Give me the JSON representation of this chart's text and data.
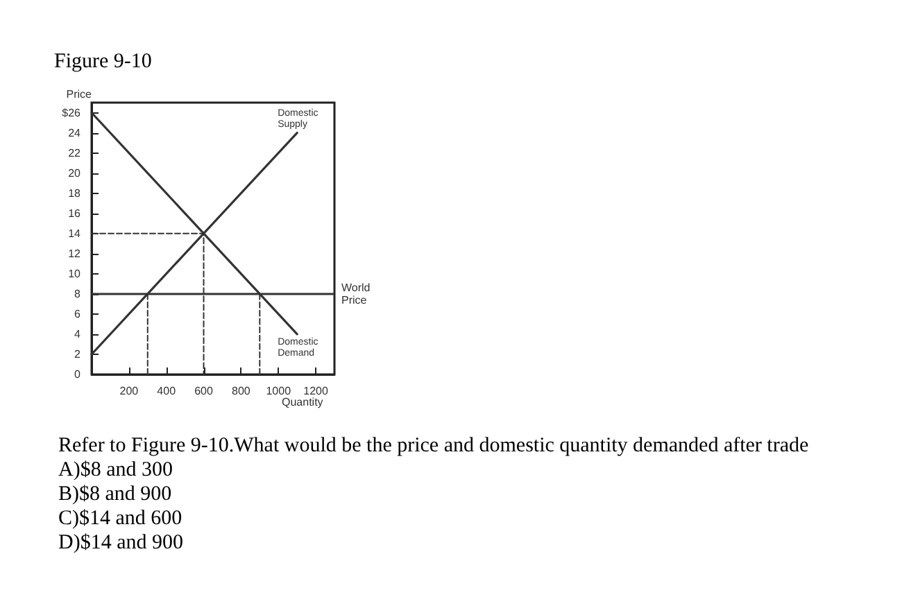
{
  "chart_data": {
    "type": "line",
    "title": "Figure 9-10",
    "xlabel": "Quantity",
    "ylabel": "Price",
    "xlim": [
      0,
      1300
    ],
    "xticks": [
      200,
      400,
      600,
      800,
      1000,
      1200
    ],
    "ylim": [
      0,
      27
    ],
    "yticks": [
      0,
      2,
      4,
      6,
      8,
      10,
      12,
      14,
      16,
      18,
      20,
      22,
      24,
      {
        "value": 26,
        "label": "$26"
      }
    ],
    "grid": false,
    "legend": false,
    "marker": "none",
    "series": [
      {
        "name": "Domestic Supply",
        "color": "#333333",
        "x": [
          0,
          1100
        ],
        "values": [
          2,
          24
        ]
      },
      {
        "name": "Domestic Demand",
        "color": "#333333",
        "x": [
          0,
          1100
        ],
        "values": [
          26,
          4
        ]
      },
      {
        "color": "#333333",
        "line_style": "dashed",
        "x": [
          0,
          600,
          600
        ],
        "values": [
          14,
          14,
          0
        ]
      },
      {
        "color": "#333333",
        "line_style": "dashed",
        "x": [
          300,
          300
        ],
        "values": [
          8,
          0
        ]
      },
      {
        "color": "#333333",
        "line_style": "dashed",
        "x": [
          900,
          900
        ],
        "values": [
          8,
          0
        ]
      }
    ],
    "ref_lines": [
      {
        "axis": "y",
        "value": 8,
        "label": "World Price",
        "color": "#333333"
      }
    ],
    "annotations": [
      "Refer to Figure 9-10.What would be the price and domestic quantity demanded after trade",
      "A)$8 and 300",
      "B)$8 and 900",
      "C)$14 and 600",
      "D)$14 and 900"
    ]
  }
}
